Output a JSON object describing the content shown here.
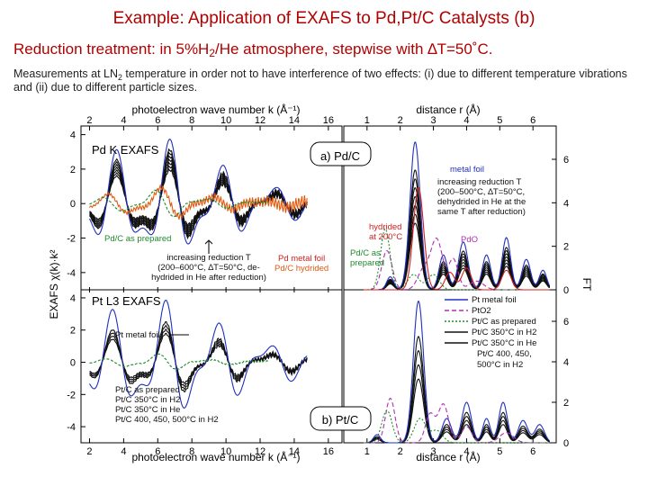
{
  "slide": {
    "title": "Example: Application of EXAFS to Pd,Pt/C Catalysts (b)",
    "intro_prefix": "Reduction treatment:  in 5%H",
    "intro_sub": "2",
    "intro_mid": "/He atmosphere, stepwise with ",
    "intro_delta": "∆T",
    "intro_suffix": "=50˚C.",
    "note_prefix": "Measurements at LN",
    "note_sub": "2",
    "note_suffix": " temperature in order not to have interference of two effects: (i) due to different temperature vibrations and (ii) due to different particle sizes."
  },
  "chart_data": [
    {
      "id": "chi-k-panel",
      "type": "line",
      "xlabel_top": "photoelectron wave number k (Å⁻¹)",
      "xlabel_bottom": "photoelectron wave number k (Å⁻¹)",
      "ylabel": "EXAFS χ(k)·k²",
      "x_ticks": [
        "2",
        "4",
        "6",
        "8",
        "10",
        "12",
        "14",
        "16"
      ],
      "xlim": [
        1.5,
        16.8
      ],
      "subplots": [
        {
          "name": "Pd K EXAFS",
          "ylim": [
            -5,
            4.5
          ],
          "y_ticks": [
            "4",
            "2",
            "0",
            "-2",
            "-4"
          ],
          "annotations": [
            "Pd K EXAFS",
            "Pd/C as prepared",
            "increasing reduction T",
            "(200–600°C, ∆T=50°C, de-",
            "hydrided in He after reduction)",
            "Pd metal foil",
            "Pd/C hydrided"
          ],
          "series": [
            {
              "name": "Pd metal foil",
              "color": "#2030c0"
            },
            {
              "name": "Pd/C as prepared",
              "color": "#1f8a2a"
            },
            {
              "name": "Pd/C hydrided",
              "color": "#e05a10"
            },
            {
              "name": "increasing reduction T",
              "color": "#111111"
            }
          ]
        },
        {
          "name": "Pt L3 EXAFS",
          "ylim": [
            -5,
            4.5
          ],
          "y_ticks": [
            "4",
            "2",
            "0",
            "-2",
            "-4"
          ],
          "annotations": [
            "Pt L3 EXAFS",
            "Pt metal foil",
            "Pt/C as prepared",
            "Pt/C 350°C in H2",
            "Pt/C 350°C in He",
            "Pt/C 400, 450, 500°C in H2"
          ],
          "series": [
            {
              "name": "Pt metal foil",
              "color": "#2030c0"
            },
            {
              "name": "Pt/C as prepared",
              "color": "#1f8a2a"
            },
            {
              "name": "Pt/C 350°C in H2",
              "color": "#111111"
            }
          ]
        }
      ]
    },
    {
      "id": "ft-panel",
      "type": "line",
      "xlabel_top": "distance r (Å)",
      "xlabel_bottom": "distance r (Å)",
      "ylabel": "FT",
      "x_ticks": [
        "1",
        "2",
        "3",
        "4",
        "5",
        "6"
      ],
      "xlim": [
        0.3,
        6.7
      ],
      "subplots": [
        {
          "name": "a) Pd/C",
          "ylim": [
            0,
            7.2
          ],
          "y_ticks": [
            "6",
            "4",
            "2",
            "0"
          ],
          "annotations": [
            "a) Pd/C",
            "metal foil",
            "increasing reduction T",
            "(200–500°C, ∆T=50°C,",
            "dehydrided in He at the",
            "same T after reduction)",
            "hydrided",
            "at 200°C",
            "PdO",
            "Pd/C as",
            "prepared"
          ],
          "series": [
            {
              "name": "metal foil",
              "color": "#2030c0"
            },
            {
              "name": "PdO",
              "color": "#b030b0"
            },
            {
              "name": "Pd/C as prepared",
              "color": "#1f8a2a"
            },
            {
              "name": "hydrided at 200°C",
              "color": "#d02020"
            },
            {
              "name": "increasing reduction T",
              "color": "#111111"
            }
          ]
        },
        {
          "name": "b) Pt/C",
          "ylim": [
            0,
            7.2
          ],
          "y_ticks": [
            "6",
            "4",
            "2",
            "0"
          ],
          "annotations": [
            "b) Pt/C"
          ],
          "legend": [
            {
              "label": "Pt metal foil",
              "color": "#2030c0",
              "dash": "solid"
            },
            {
              "label": "PtO2",
              "color": "#b030b0",
              "dash": "dashed"
            },
            {
              "label": "Pt/C as prepared",
              "color": "#1f8a2a",
              "dash": "dotted"
            },
            {
              "label": "Pt/C 350°C in H2",
              "color": "#111111",
              "dash": "solid"
            },
            {
              "label": "Pt/C 350°C in He",
              "color": "#111111",
              "dash": "solid"
            },
            {
              "label": "Pt/C 400, 450,",
              "color": "#111111",
              "dash": "solid"
            },
            {
              "label": "500°C in H2",
              "color": "#111111",
              "dash": "solid"
            }
          ]
        }
      ]
    }
  ]
}
